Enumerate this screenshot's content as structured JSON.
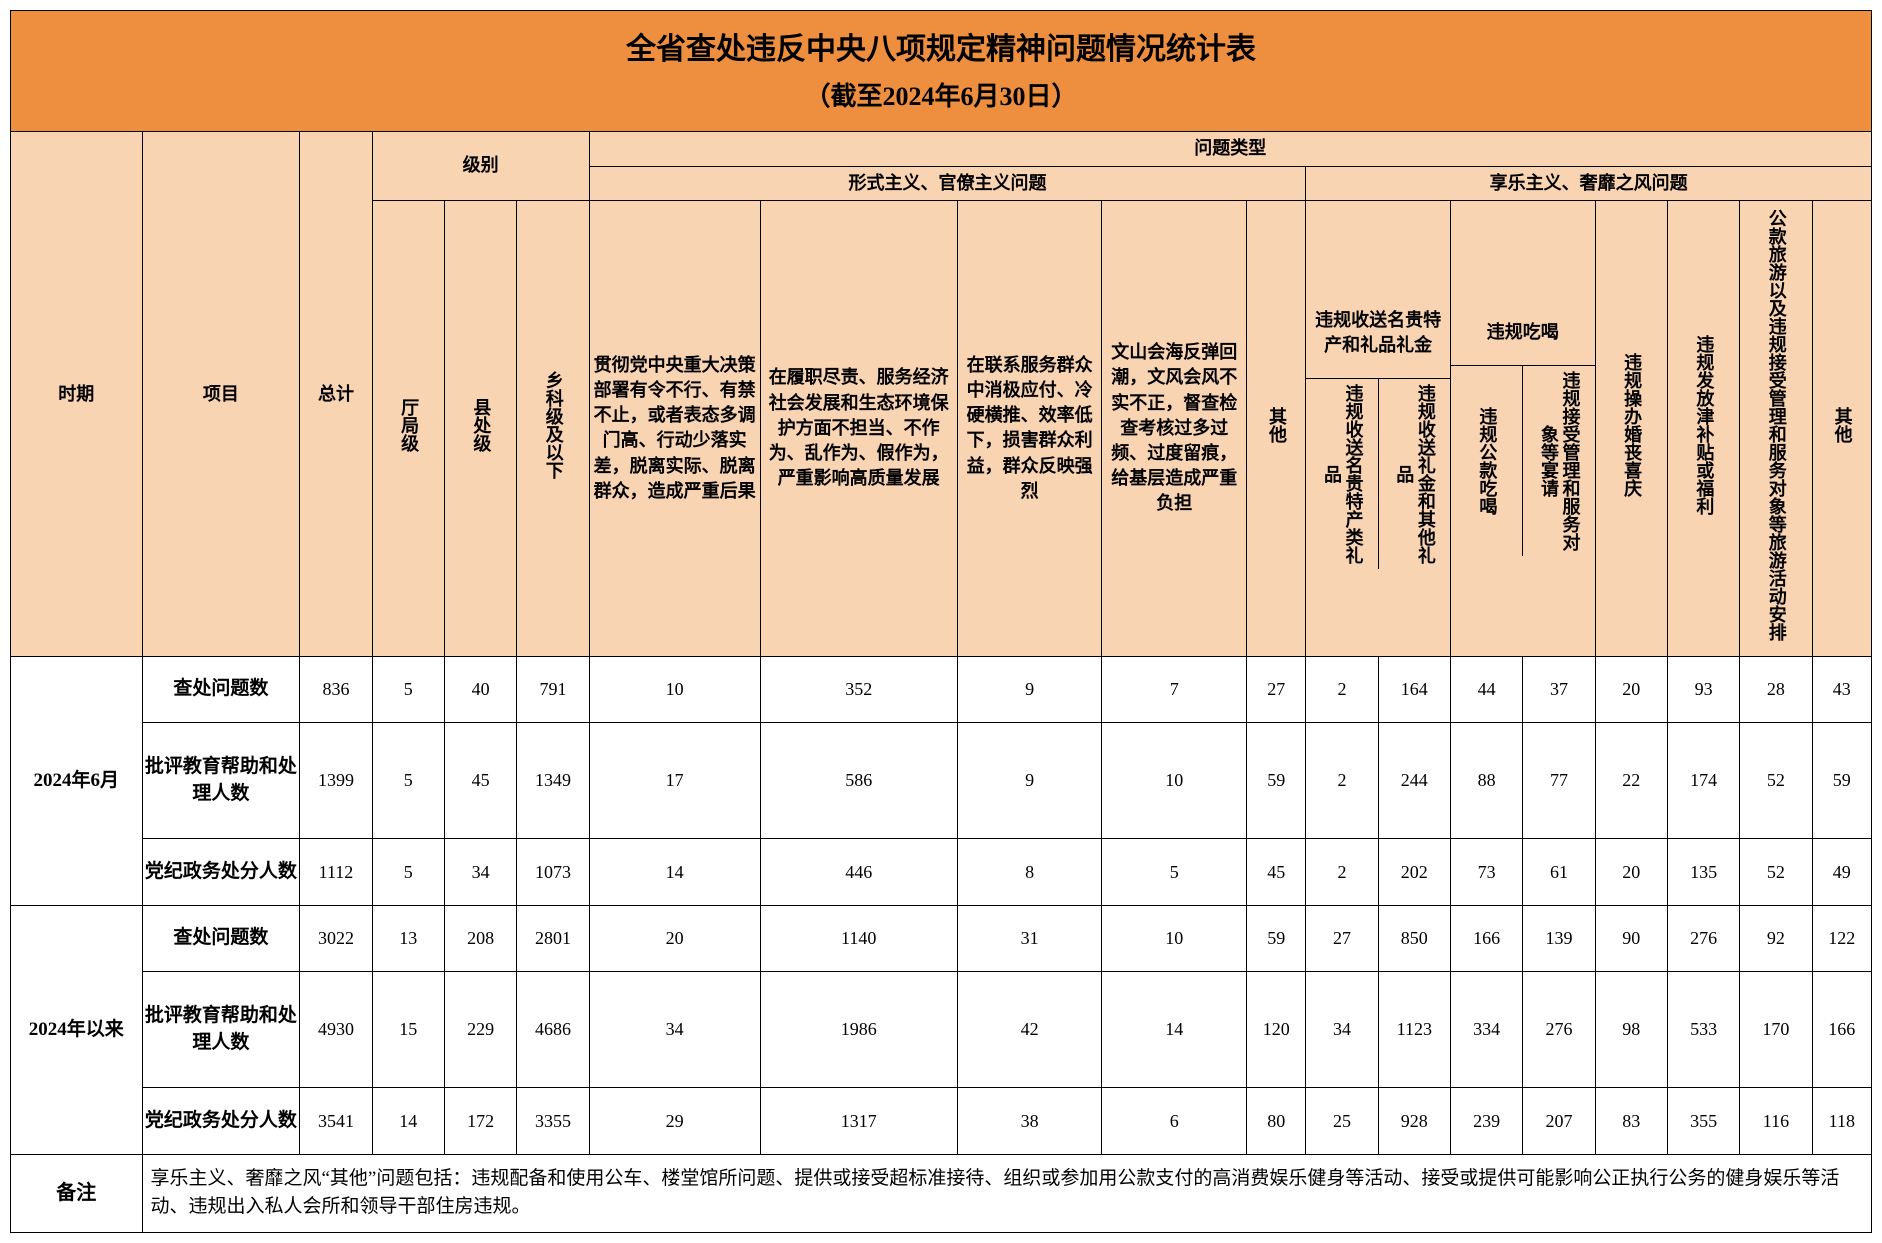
{
  "title": "全省查处违反中央八项规定精神问题情况统计表",
  "subtitle": "（截至2024年6月30日）",
  "headers": {
    "period": "时期",
    "item": "项目",
    "total": "总计",
    "level_group": "级别",
    "level_ting": "厅局级",
    "level_xian": "县处级",
    "level_xiang": "乡科级及以下",
    "type_group": "问题类型",
    "type_formal": "形式主义、官僚主义问题",
    "type_xiangle": "享乐主义、奢靡之风问题",
    "col1": "贯彻党中央重大决策部署有令不行、有禁不止，或者表态多调门高、行动少落实差，脱离实际、脱离群众，造成严重后果",
    "col2": "在履职尽责、服务经济社会发展和生态环境保护方面不担当、不作为、乱作为、假作为，严重影响高质量发展",
    "col3": "在联系服务群众中消极应付、冷硬横推、效率低下，损害群众利益，群众反映强烈",
    "col4": "文山会海反弹回潮，文风会风不实不正，督查检查考核过多过频、过度留痕，给基层造成严重负担",
    "col5": "其他",
    "col6_group": "违规收送名贵特产和礼品礼金",
    "col6a": "违规收送名贵特产类礼品",
    "col6b": "违规收送礼金和其他礼品",
    "col7_group": "违规吃喝",
    "col7a": "违规公款吃喝",
    "col7b": "违规接受管理和服务对象等宴请",
    "col8": "违规操办婚丧喜庆",
    "col9": "违规发放津补贴或福利",
    "col10": "公款旅游以及违规接受管理和服务对象等旅游活动安排",
    "col11": "其他"
  },
  "periods": [
    "2024年6月",
    "2024年以来"
  ],
  "items": [
    "查处问题数",
    "批评教育帮助和处理人数",
    "党纪政务处分人数"
  ],
  "rows": [
    [
      "836",
      "5",
      "40",
      "791",
      "10",
      "352",
      "9",
      "7",
      "27",
      "2",
      "164",
      "44",
      "37",
      "20",
      "93",
      "28",
      "43"
    ],
    [
      "1399",
      "5",
      "45",
      "1349",
      "17",
      "586",
      "9",
      "10",
      "59",
      "2",
      "244",
      "88",
      "77",
      "22",
      "174",
      "52",
      "59"
    ],
    [
      "1112",
      "5",
      "34",
      "1073",
      "14",
      "446",
      "8",
      "5",
      "45",
      "2",
      "202",
      "73",
      "61",
      "20",
      "135",
      "52",
      "49"
    ],
    [
      "3022",
      "13",
      "208",
      "2801",
      "20",
      "1140",
      "31",
      "10",
      "59",
      "27",
      "850",
      "166",
      "139",
      "90",
      "276",
      "92",
      "122"
    ],
    [
      "4930",
      "15",
      "229",
      "4686",
      "34",
      "1986",
      "42",
      "14",
      "120",
      "34",
      "1123",
      "334",
      "276",
      "98",
      "533",
      "170",
      "166"
    ],
    [
      "3541",
      "14",
      "172",
      "3355",
      "29",
      "1317",
      "38",
      "6",
      "80",
      "25",
      "928",
      "239",
      "207",
      "83",
      "355",
      "116",
      "118"
    ]
  ],
  "note_label": "备注",
  "note_text": "享乐主义、奢靡之风“其他”问题包括：违规配备和使用公车、楼堂馆所问题、提供或接受超标准接待、组织或参加用公款支付的高消费娱乐健身等活动、接受或提供可能影响公正执行公务的健身娱乐等活动、违规出入私人会所和领导干部住房违规。",
  "col_widths": [
    "100",
    "120",
    "55",
    "55",
    "55",
    "55",
    "130",
    "150",
    "110",
    "110",
    "45",
    "55",
    "55",
    "55",
    "55",
    "55",
    "55",
    "55",
    "45"
  ]
}
